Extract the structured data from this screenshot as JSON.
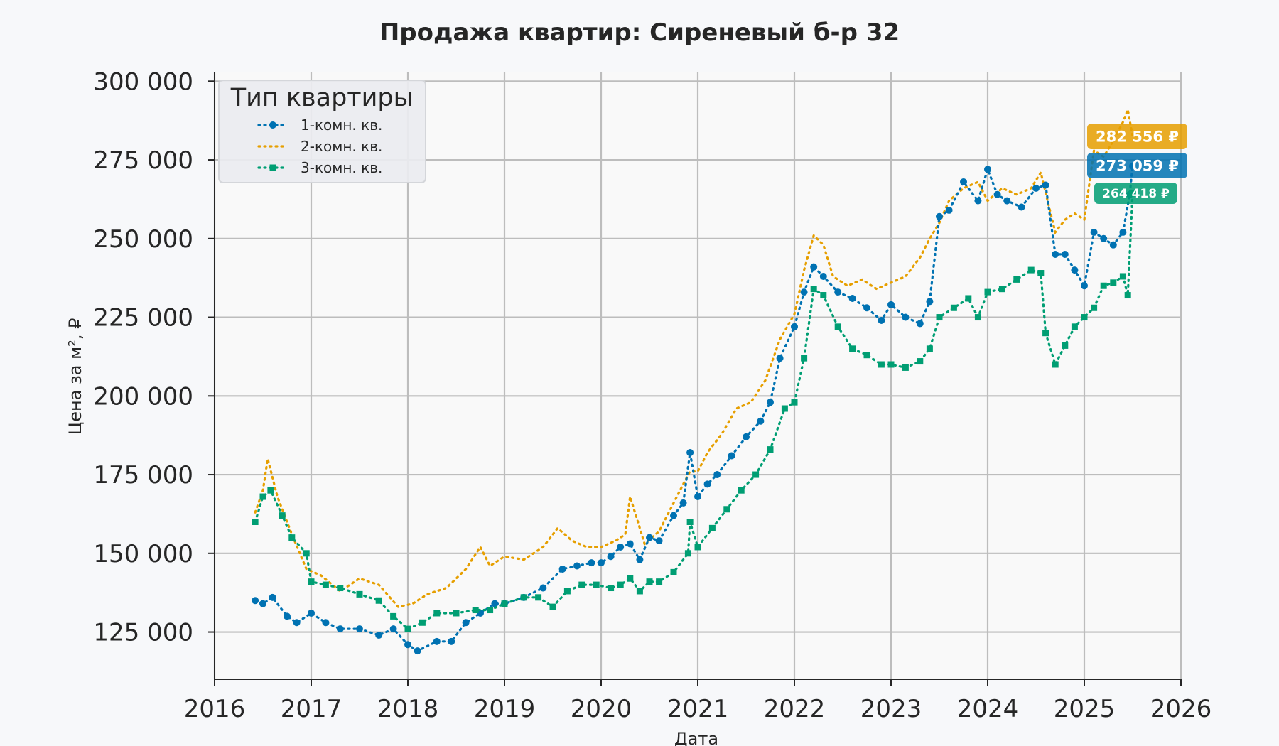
{
  "chart_data": {
    "type": "line",
    "title": "Продажа квартир: Сиреневый б-р 32",
    "xlabel": "Дата",
    "ylabel": "Цена за м², ₽",
    "xlim": [
      2016,
      2026
    ],
    "ylim": [
      110000,
      303000
    ],
    "x_ticks": [
      2016,
      2017,
      2018,
      2019,
      2020,
      2021,
      2022,
      2023,
      2024,
      2025,
      2026
    ],
    "x_tick_labels": [
      "2016",
      "2017",
      "2018",
      "2019",
      "2020",
      "2021",
      "2022",
      "2023",
      "2024",
      "2025",
      "2026"
    ],
    "y_ticks": [
      125000,
      150000,
      175000,
      200000,
      225000,
      250000,
      275000,
      300000
    ],
    "y_tick_labels": [
      "125 000",
      "150 000",
      "175 000",
      "200 000",
      "225 000",
      "250 000",
      "275 000",
      "300 000"
    ],
    "grid": true,
    "legend": {
      "title": "Тип квартиры",
      "placement": "top-left"
    },
    "series": [
      {
        "name": "1-комн. кв.",
        "color": "#0072b2",
        "marker": "circle",
        "x": [
          2016.42,
          2016.5,
          2016.6,
          2016.75,
          2016.85,
          2017.0,
          2017.15,
          2017.3,
          2017.5,
          2017.7,
          2017.85,
          2018.0,
          2018.1,
          2018.3,
          2018.45,
          2018.6,
          2018.75,
          2018.9,
          2019.0,
          2019.2,
          2019.4,
          2019.6,
          2019.75,
          2019.9,
          2020.0,
          2020.1,
          2020.2,
          2020.3,
          2020.4,
          2020.5,
          2020.6,
          2020.75,
          2020.85,
          2020.92,
          2021.0,
          2021.1,
          2021.2,
          2021.35,
          2021.5,
          2021.65,
          2021.75,
          2021.85,
          2022.0,
          2022.1,
          2022.2,
          2022.3,
          2022.45,
          2022.6,
          2022.75,
          2022.9,
          2023.0,
          2023.15,
          2023.3,
          2023.4,
          2023.5,
          2023.6,
          2023.75,
          2023.9,
          2024.0,
          2024.1,
          2024.2,
          2024.35,
          2024.5,
          2024.6,
          2024.7,
          2024.8,
          2024.9,
          2025.0,
          2025.1,
          2025.2,
          2025.3,
          2025.4,
          2025.47,
          2025.5
        ],
        "values": [
          135000,
          134000,
          136000,
          130000,
          128000,
          131000,
          128000,
          126000,
          126000,
          124000,
          126000,
          121000,
          119000,
          122000,
          122000,
          128000,
          131000,
          134000,
          134000,
          136000,
          139000,
          145000,
          146000,
          147000,
          147000,
          149000,
          152000,
          153000,
          148000,
          155000,
          154000,
          162000,
          166000,
          182000,
          168000,
          172000,
          175000,
          181000,
          187000,
          192000,
          198000,
          212000,
          222000,
          233000,
          241000,
          238000,
          233000,
          231000,
          228000,
          224000,
          229000,
          225000,
          223000,
          230000,
          257000,
          259000,
          268000,
          262000,
          272000,
          264000,
          262000,
          260000,
          266000,
          267000,
          245000,
          245000,
          240000,
          235000,
          252000,
          250000,
          248000,
          252000,
          264000,
          273059
        ]
      },
      {
        "name": "2-комн. кв.",
        "color": "#e69f00",
        "marker": "none",
        "x": [
          2016.42,
          2016.5,
          2016.55,
          2016.65,
          2016.8,
          2016.95,
          2017.1,
          2017.3,
          2017.5,
          2017.7,
          2017.9,
          2018.05,
          2018.2,
          2018.4,
          2018.6,
          2018.75,
          2018.85,
          2019.0,
          2019.2,
          2019.4,
          2019.55,
          2019.7,
          2019.85,
          2020.0,
          2020.15,
          2020.25,
          2020.3,
          2020.45,
          2020.6,
          2020.75,
          2020.85,
          2020.92,
          2021.0,
          2021.1,
          2021.25,
          2021.4,
          2021.55,
          2021.7,
          2021.85,
          2022.0,
          2022.1,
          2022.2,
          2022.3,
          2022.4,
          2022.55,
          2022.7,
          2022.85,
          2023.0,
          2023.15,
          2023.3,
          2023.4,
          2023.5,
          2023.6,
          2023.75,
          2023.9,
          2024.0,
          2024.15,
          2024.3,
          2024.45,
          2024.55,
          2024.62,
          2024.7,
          2024.8,
          2024.9,
          2025.0,
          2025.1,
          2025.2,
          2025.3,
          2025.4,
          2025.45,
          2025.5
        ],
        "values": [
          163000,
          170000,
          180000,
          168000,
          156000,
          145000,
          143000,
          138000,
          142000,
          140000,
          133000,
          134000,
          137000,
          139000,
          145000,
          152000,
          146000,
          149000,
          148000,
          152000,
          158000,
          154000,
          152000,
          152000,
          154000,
          156000,
          168000,
          153000,
          157000,
          166000,
          172000,
          176000,
          176000,
          182000,
          188000,
          196000,
          198000,
          205000,
          218000,
          226000,
          240000,
          251000,
          248000,
          238000,
          235000,
          237000,
          234000,
          236000,
          238000,
          244000,
          250000,
          255000,
          262000,
          266000,
          268000,
          262000,
          266000,
          264000,
          266000,
          271000,
          262000,
          252000,
          256000,
          258000,
          256000,
          278000,
          276000,
          281000,
          287000,
          291000,
          282556
        ]
      },
      {
        "name": "3-комн. кв.",
        "color": "#009e73",
        "marker": "square",
        "x": [
          2016.42,
          2016.5,
          2016.58,
          2016.7,
          2016.8,
          2016.95,
          2017.0,
          2017.15,
          2017.3,
          2017.5,
          2017.7,
          2017.85,
          2018.0,
          2018.15,
          2018.3,
          2018.5,
          2018.7,
          2018.85,
          2019.0,
          2019.2,
          2019.35,
          2019.5,
          2019.65,
          2019.8,
          2019.95,
          2020.1,
          2020.2,
          2020.3,
          2020.4,
          2020.5,
          2020.6,
          2020.75,
          2020.9,
          2020.92,
          2021.0,
          2021.15,
          2021.3,
          2021.45,
          2021.6,
          2021.75,
          2021.9,
          2022.0,
          2022.1,
          2022.2,
          2022.3,
          2022.45,
          2022.6,
          2022.75,
          2022.9,
          2023.0,
          2023.15,
          2023.3,
          2023.4,
          2023.5,
          2023.65,
          2023.8,
          2023.9,
          2024.0,
          2024.15,
          2024.3,
          2024.45,
          2024.55,
          2024.6,
          2024.7,
          2024.8,
          2024.9,
          2025.0,
          2025.1,
          2025.2,
          2025.3,
          2025.4,
          2025.45,
          2025.5
        ],
        "values": [
          160000,
          168000,
          170000,
          162000,
          155000,
          150000,
          141000,
          140000,
          139000,
          137000,
          135000,
          130000,
          126000,
          128000,
          131000,
          131000,
          132000,
          132000,
          134000,
          136000,
          136000,
          133000,
          138000,
          140000,
          140000,
          139000,
          140000,
          142000,
          138000,
          141000,
          141000,
          144000,
          150000,
          160000,
          152000,
          158000,
          164000,
          170000,
          175000,
          183000,
          196000,
          198000,
          212000,
          234000,
          232000,
          222000,
          215000,
          213000,
          210000,
          210000,
          209000,
          211000,
          215000,
          225000,
          228000,
          231000,
          225000,
          233000,
          234000,
          237000,
          240000,
          239000,
          220000,
          210000,
          216000,
          222000,
          225000,
          228000,
          235000,
          236000,
          238000,
          232000,
          264418
        ]
      }
    ],
    "end_labels": [
      {
        "series": "2-комн. кв.",
        "text": "282 556 ₽",
        "color": "#e69f00"
      },
      {
        "series": "1-комн. кв.",
        "text": "273 059 ₽",
        "color": "#0072b2"
      },
      {
        "series": "3-комн. кв.",
        "text": "264 418 ₽",
        "color": "#009e73"
      }
    ]
  }
}
